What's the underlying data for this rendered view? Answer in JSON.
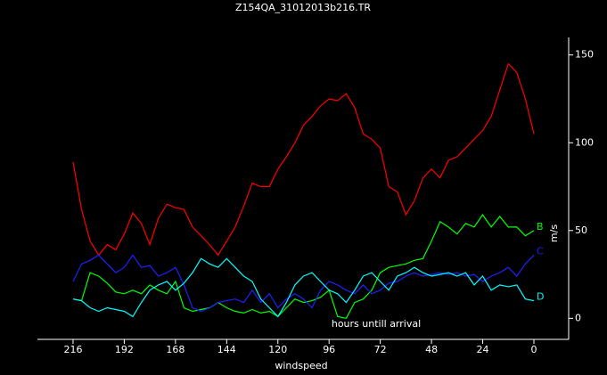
{
  "chart_data": {
    "type": "line",
    "title": "Z154QA_31012013b216.TR",
    "x_label": "windspeed",
    "y_label": "m/s",
    "annotation": "hours untill arrival",
    "x": [
      216,
      212,
      208,
      204,
      200,
      196,
      192,
      188,
      184,
      180,
      176,
      172,
      168,
      164,
      160,
      156,
      152,
      148,
      144,
      140,
      136,
      132,
      128,
      124,
      120,
      116,
      112,
      108,
      104,
      100,
      96,
      92,
      88,
      84,
      80,
      76,
      72,
      68,
      64,
      60,
      56,
      52,
      48,
      44,
      40,
      36,
      32,
      28,
      24,
      20,
      16,
      12,
      8,
      4,
      0
    ],
    "xlim": [
      232.7,
      -16.3
    ],
    "xticks": [
      216,
      192,
      168,
      144,
      120,
      96,
      72,
      48,
      24,
      0
    ],
    "ylim": [
      -12,
      160
    ],
    "yticks": [
      0,
      50,
      100,
      150
    ],
    "series": [
      {
        "color": "#ff0000",
        "values": [
          89,
          62,
          44,
          36,
          42,
          39,
          48,
          60,
          54,
          42,
          57,
          65,
          63,
          62,
          52,
          47,
          42,
          36,
          44,
          52,
          64,
          77,
          75,
          75,
          85,
          92,
          100,
          110,
          115,
          121,
          125,
          124,
          128,
          120,
          105,
          102,
          97,
          75,
          72,
          59,
          67,
          80,
          85,
          80,
          90,
          92,
          97,
          102,
          107,
          115,
          130,
          145,
          140,
          125,
          105
        ]
      },
      {
        "name": "B",
        "color": "#00ff00",
        "values": [
          11,
          10,
          26,
          24,
          20,
          15,
          14,
          16,
          14,
          19,
          16,
          14,
          21,
          6,
          4,
          5,
          6,
          9,
          6,
          4,
          3,
          5,
          3,
          4,
          1,
          6,
          11,
          9,
          10,
          12,
          16,
          1,
          0,
          9,
          11,
          16,
          26,
          29,
          30,
          31,
          33,
          34,
          44,
          55,
          52,
          48,
          54,
          52,
          59,
          52,
          58,
          52,
          52,
          47,
          50
        ]
      },
      {
        "name": "C",
        "color": "#2020ff",
        "values": [
          21,
          31,
          33,
          36,
          31,
          26,
          29,
          36,
          29,
          30,
          24,
          26,
          29,
          19,
          6,
          4,
          6,
          9,
          10,
          11,
          9,
          16,
          9,
          14,
          6,
          11,
          14,
          11,
          6,
          16,
          21,
          19,
          16,
          14,
          19,
          14,
          16,
          20,
          21,
          24,
          26,
          24,
          25,
          26,
          25,
          26,
          24,
          25,
          21,
          24,
          26,
          29,
          24,
          31,
          36
        ]
      },
      {
        "name": "D",
        "color": "#00ffff",
        "values": [
          11,
          10,
          6,
          4,
          6,
          5,
          4,
          1,
          9,
          16,
          19,
          21,
          16,
          20,
          26,
          34,
          31,
          29,
          34,
          29,
          24,
          21,
          11,
          6,
          1,
          9,
          19,
          24,
          26,
          21,
          16,
          14,
          9,
          16,
          24,
          26,
          21,
          16,
          24,
          26,
          29,
          26,
          24,
          25,
          26,
          24,
          26,
          19,
          24,
          16,
          19,
          18,
          19,
          11,
          10
        ]
      }
    ]
  }
}
